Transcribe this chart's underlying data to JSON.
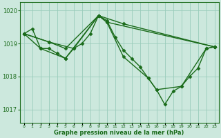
{
  "xlabel": "Graphe pression niveau de la mer (hPa)",
  "x_ticks": [
    0,
    1,
    2,
    3,
    4,
    5,
    6,
    7,
    8,
    9,
    10,
    11,
    12,
    13,
    14,
    15,
    16,
    17,
    18,
    19,
    20,
    21,
    22,
    23
  ],
  "ylim": [
    1016.6,
    1020.25
  ],
  "yticks": [
    1017,
    1018,
    1019,
    1020
  ],
  "background_color": "#cce8dd",
  "grid_color": "#99ccbb",
  "line_color": "#1a6b1a",
  "lines": [
    {
      "x": [
        0,
        1,
        2,
        3,
        4,
        5,
        6,
        7,
        8,
        9,
        10,
        11,
        12,
        13,
        14,
        15,
        16,
        17,
        18,
        19,
        20,
        21,
        22,
        23
      ],
      "y": [
        1019.3,
        1019.45,
        1018.85,
        1018.85,
        1018.7,
        1018.55,
        1018.85,
        1019.0,
        1019.3,
        1019.85,
        1019.7,
        1019.2,
        1018.8,
        1018.55,
        1018.3,
        1017.95,
        1017.6,
        1017.15,
        1017.55,
        1017.7,
        1018.0,
        1018.25,
        1018.85,
        1018.9
      ]
    },
    {
      "x": [
        0,
        3,
        5,
        9,
        10,
        23
      ],
      "y": [
        1019.3,
        1019.05,
        1018.85,
        1019.85,
        1019.65,
        1018.9
      ]
    },
    {
      "x": [
        0,
        2,
        5,
        9,
        12,
        23
      ],
      "y": [
        1019.3,
        1018.85,
        1018.55,
        1019.85,
        1019.6,
        1018.9
      ]
    },
    {
      "x": [
        0,
        3,
        6,
        9,
        10,
        12,
        15,
        16,
        19,
        22,
        23
      ],
      "y": [
        1019.3,
        1019.05,
        1018.85,
        1019.85,
        1019.65,
        1018.6,
        1017.95,
        1017.6,
        1017.7,
        1018.85,
        1018.9
      ]
    }
  ],
  "marker": "D",
  "marker_size": 2.5,
  "line_width": 1.0
}
